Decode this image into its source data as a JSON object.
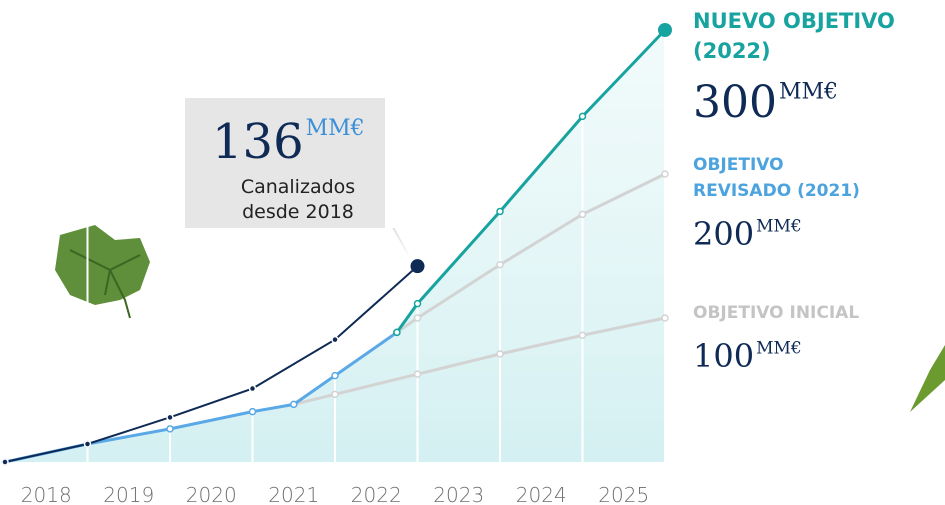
{
  "chart_data": {
    "type": "line",
    "xlim": [
      2018,
      2026
    ],
    "ylim": [
      0,
      300
    ],
    "xticks": [
      {
        "value": 2018.5,
        "label": "2018"
      },
      {
        "value": 2019.5,
        "label": "2019"
      },
      {
        "value": 2020.5,
        "label": "2020"
      },
      {
        "value": 2021.5,
        "label": "2021"
      },
      {
        "value": 2022.5,
        "label": "2022"
      },
      {
        "value": 2023.5,
        "label": "2023"
      },
      {
        "value": 2024.5,
        "label": "2024"
      },
      {
        "value": 2025.5,
        "label": "2025"
      }
    ],
    "grid": true,
    "series": [
      {
        "color": "#d3d3d3",
        "width": 3,
        "x": [
          2021.5,
          2022,
          2023,
          2024,
          2025,
          2026
        ],
        "values": [
          40,
          47,
          61,
          75,
          88,
          100
        ]
      },
      {
        "color": "#d3d3d3",
        "width": 3,
        "x": [
          2022.75,
          2023,
          2024,
          2025,
          2026
        ],
        "values": [
          90,
          100,
          137,
          172,
          200
        ]
      },
      {
        "color": "#5aa9e6",
        "width": 3,
        "x": [
          2018,
          2019,
          2020,
          2021,
          2021.5,
          2022,
          2022.75
        ],
        "values": [
          0,
          12.5,
          23,
          35,
          40,
          60,
          90
        ]
      },
      {
        "color": "#17a39f",
        "width": 3,
        "end_dot": true,
        "x": [
          2022.75,
          2023,
          2024,
          2025,
          2026
        ],
        "values": [
          90,
          110,
          174,
          240,
          300
        ]
      },
      {
        "color": "#0e2a55",
        "width": 2,
        "end_dot": true,
        "x": [
          2018,
          2019,
          2020,
          2021,
          2022,
          2023
        ],
        "values": [
          0,
          12.5,
          31,
          51,
          85,
          136
        ]
      }
    ],
    "callout": {
      "value": 136,
      "unit": "MM€",
      "lines": [
        "Canalizados",
        "desde 2018"
      ]
    },
    "targets": [
      {
        "name_lines": [
          "NUEVO OBJETIVO",
          "(2022)"
        ],
        "value": 300,
        "unit": "MM€",
        "color": "#17a39f"
      },
      {
        "name_lines": [
          "OBJETIVO",
          "REVISADO (2021)"
        ],
        "value": 200,
        "unit": "MM€",
        "color": "#4ca3dd"
      },
      {
        "name_lines": [
          "OBJETIVO INICIAL"
        ],
        "value": 100,
        "unit": "MM€",
        "color": "#c4c4c4"
      }
    ]
  }
}
